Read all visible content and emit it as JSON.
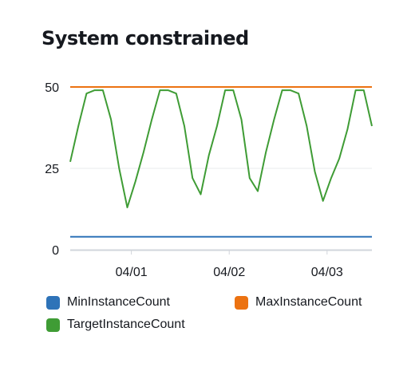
{
  "chart_data": {
    "type": "line",
    "title": "System constrained",
    "xlabel": "",
    "ylabel": "",
    "ylim": [
      0,
      50
    ],
    "yticks": [
      0,
      25,
      50
    ],
    "xticks": [
      "04/01",
      "04/02",
      "04/03"
    ],
    "x": [
      "03/31 09:00",
      "03/31 11:00",
      "03/31 13:00",
      "03/31 15:00",
      "03/31 17:00",
      "03/31 19:00",
      "03/31 21:00",
      "03/31 23:00",
      "04/01 01:00",
      "04/01 03:00",
      "04/01 05:00",
      "04/01 07:00",
      "04/01 09:00",
      "04/01 11:00",
      "04/01 13:00",
      "04/01 15:00",
      "04/01 17:00",
      "04/01 19:00",
      "04/01 21:00",
      "04/01 23:00",
      "04/02 01:00",
      "04/02 03:00",
      "04/02 05:00",
      "04/02 07:00",
      "04/02 09:00",
      "04/02 11:00",
      "04/02 13:00",
      "04/02 15:00",
      "04/02 17:00",
      "04/02 19:00",
      "04/02 21:00",
      "04/02 23:00",
      "04/03 01:00",
      "04/03 03:00",
      "04/03 05:00",
      "04/03 07:00",
      "04/03 09:00",
      "04/03 11:00"
    ],
    "grid": true,
    "legend_position": "bottom",
    "series": [
      {
        "name": "MinInstanceCount",
        "color": "#2e73b8",
        "values": [
          4,
          4,
          4,
          4,
          4,
          4,
          4,
          4,
          4,
          4,
          4,
          4,
          4,
          4,
          4,
          4,
          4,
          4,
          4,
          4,
          4,
          4,
          4,
          4,
          4,
          4,
          4,
          4,
          4,
          4,
          4,
          4,
          4,
          4,
          4,
          4,
          4,
          4
        ]
      },
      {
        "name": "MaxInstanceCount",
        "color": "#ec7211",
        "values": [
          50,
          50,
          50,
          50,
          50,
          50,
          50,
          50,
          50,
          50,
          50,
          50,
          50,
          50,
          50,
          50,
          50,
          50,
          50,
          50,
          50,
          50,
          50,
          50,
          50,
          50,
          50,
          50,
          50,
          50,
          50,
          50,
          50,
          50,
          50,
          50,
          50,
          50
        ]
      },
      {
        "name": "TargetInstanceCount",
        "color": "#3f9c35",
        "values": [
          27,
          38,
          48,
          49,
          49,
          40,
          25,
          13,
          21,
          30,
          40,
          49,
          49,
          48,
          38,
          22,
          17,
          29,
          38,
          49,
          49,
          40,
          22,
          18,
          30,
          40,
          49,
          49,
          48,
          38,
          24,
          15,
          22,
          28,
          37,
          49,
          49,
          38
        ]
      }
    ]
  }
}
